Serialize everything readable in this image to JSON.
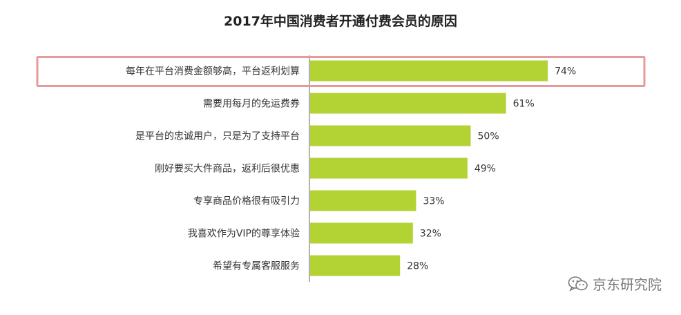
{
  "chart_data": {
    "type": "bar",
    "orientation": "horizontal",
    "title": "2017年中国消费者开通付费会员的原因",
    "categories": [
      "每年在平台消费金额够高，平台返利划算",
      "需要用每月的免运费券",
      "是平台的忠诚用户，只是为了支持平台",
      "刚好要买大件商品，返利后很优惠",
      "专享商品价格很有吸引力",
      "我喜欢作为VIP的尊享体验",
      "希望有专属客服服务"
    ],
    "values": [
      74,
      61,
      50,
      49,
      33,
      32,
      28
    ],
    "data_labels": [
      "74%",
      "61%",
      "50%",
      "49%",
      "33%",
      "32%",
      "28%"
    ],
    "unit": "%",
    "xlim": [
      0,
      100
    ],
    "bar_color": "#b3d234",
    "highlight_index": 0,
    "highlight_color": "#e8999b",
    "grid": false,
    "legend": "none"
  },
  "watermark": {
    "text": "京东研究院",
    "icon": "wechat-icon"
  }
}
